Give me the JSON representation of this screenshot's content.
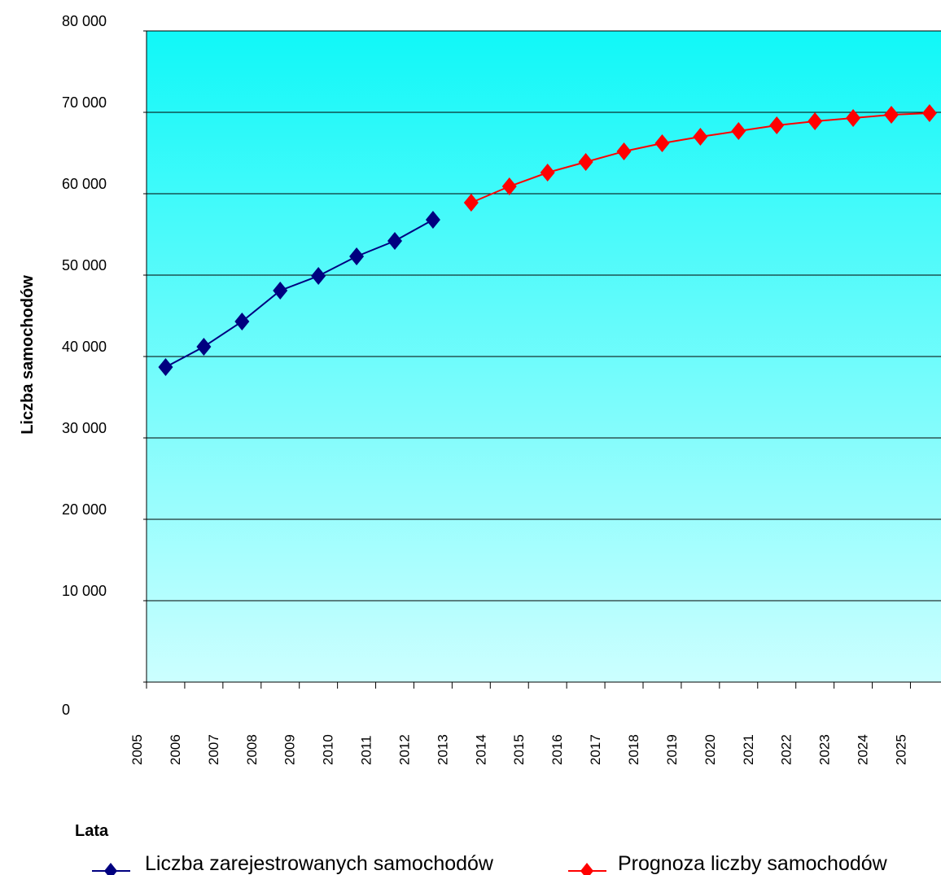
{
  "chart_data": {
    "type": "line",
    "xlabel": "Lata",
    "ylabel": "Liczba samochodów",
    "ylim": [
      0,
      80000
    ],
    "xlim": [
      2005,
      2025
    ],
    "grid": true,
    "legend_position": "bottom",
    "background_gradient": [
      "#10f8f8",
      "#ccffff"
    ],
    "y_ticks": [
      "0",
      "10 000",
      "20 000",
      "30 000",
      "40 000",
      "50 000",
      "60 000",
      "70 000",
      "80 000"
    ],
    "x_ticks": [
      "2005",
      "2006",
      "2007",
      "2008",
      "2009",
      "2010",
      "2011",
      "2012",
      "2013",
      "2014",
      "2015",
      "2016",
      "2017",
      "2018",
      "2019",
      "2020",
      "2021",
      "2022",
      "2023",
      "2024",
      "2025"
    ],
    "series": [
      {
        "name": "Liczba zarejestrowanych samochodów",
        "color": "#000080",
        "marker": "diamond",
        "x": [
          2005.5,
          2006.5,
          2007.5,
          2008.5,
          2009.5,
          2010.5,
          2011.5,
          2012.5
        ],
        "values": [
          38700,
          41200,
          44300,
          48100,
          49900,
          52300,
          54200,
          56800
        ]
      },
      {
        "name": "Prognoza liczby samochodów",
        "color": "#ff0000",
        "marker": "diamond",
        "x": [
          2013.5,
          2014.5,
          2015.5,
          2016.5,
          2017.5,
          2018.5,
          2019.5,
          2020.5,
          2021.5,
          2022.5,
          2023.5,
          2024.5,
          2025.5
        ],
        "values": [
          58900,
          60900,
          62600,
          63900,
          65200,
          66200,
          67000,
          67700,
          68400,
          68900,
          69300,
          69700,
          69900
        ]
      }
    ]
  }
}
